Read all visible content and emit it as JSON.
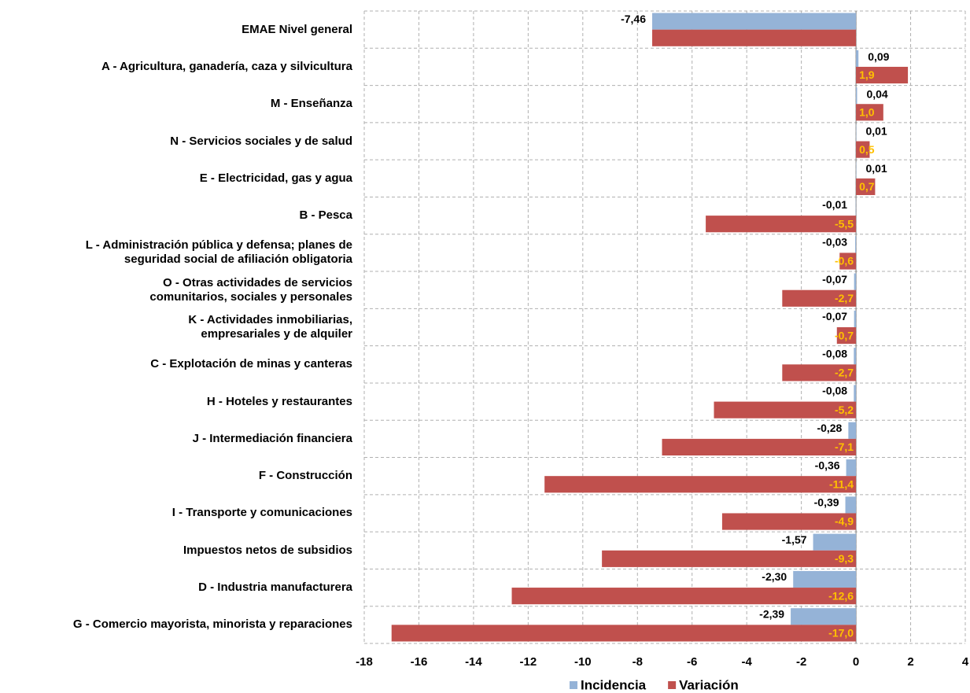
{
  "chart_data": {
    "type": "bar",
    "orientation": "horizontal",
    "categories": [
      "EMAE Nivel general",
      "A -  Agricultura, ganadería, caza y silvicultura ",
      "M - Enseñanza",
      "N - Servicios sociales y de salud",
      "E - Electricidad, gas y agua",
      "B - Pesca",
      "L - Administración pública y defensa; planes de\nseguridad social de afiliación obligatoria",
      "O - Otras actividades de servicios \ncomunitarios, sociales y personales",
      "K - Actividades inmobiliarias,\nempresariales y de alquiler ",
      "C - Explotación de minas y canteras",
      "H - Hoteles y restaurantes",
      "J - Intermediación financiera",
      "F - Construcción",
      "I - Transporte y comunicaciones",
      "Impuestos netos de subsidios",
      "D - Industria manufacturera",
      "G - Comercio mayorista, minorista y reparaciones"
    ],
    "series": [
      {
        "name": "Incidencia",
        "color": "#95b3d7",
        "label_color": "#000000",
        "values": [
          -7.46,
          0.09,
          0.04,
          0.01,
          0.01,
          -0.01,
          -0.03,
          -0.07,
          -0.07,
          -0.08,
          -0.08,
          -0.28,
          -0.36,
          -0.39,
          -1.57,
          -2.3,
          -2.39
        ],
        "value_labels": [
          "-7,46",
          "0,09",
          "0,04",
          "0,01",
          "0,01",
          "-0,01",
          "-0,03",
          "-0,07",
          "-0,07",
          "-0,08",
          "-0,08",
          "-0,28",
          "-0,36",
          "-0,39",
          "-1,57",
          "-2,30",
          "-2,39"
        ]
      },
      {
        "name": "Variación",
        "color": "#c0504d",
        "label_color": "#ffc000",
        "values": [
          -7.46,
          1.9,
          1.0,
          0.5,
          0.7,
          -5.5,
          -0.6,
          -2.7,
          -0.7,
          -2.7,
          -5.2,
          -7.1,
          -11.4,
          -4.9,
          -9.3,
          -12.6,
          -17.0
        ],
        "value_labels": [
          null,
          "1,9",
          "1,0",
          "0,5",
          "0,7",
          "-5,5",
          "-0,6",
          "-2,7",
          "-0,7",
          "-2,7",
          "-5,2",
          "-7,1",
          "-11,4",
          "-4,9",
          "-9,3",
          "-12,6",
          "-17,0"
        ]
      }
    ],
    "xlim": [
      -18,
      4
    ],
    "xticks": [
      -18,
      -16,
      -14,
      -12,
      -10,
      -8,
      -6,
      -4,
      -2,
      0,
      2,
      4
    ],
    "grid": true,
    "legend": "bottom"
  }
}
